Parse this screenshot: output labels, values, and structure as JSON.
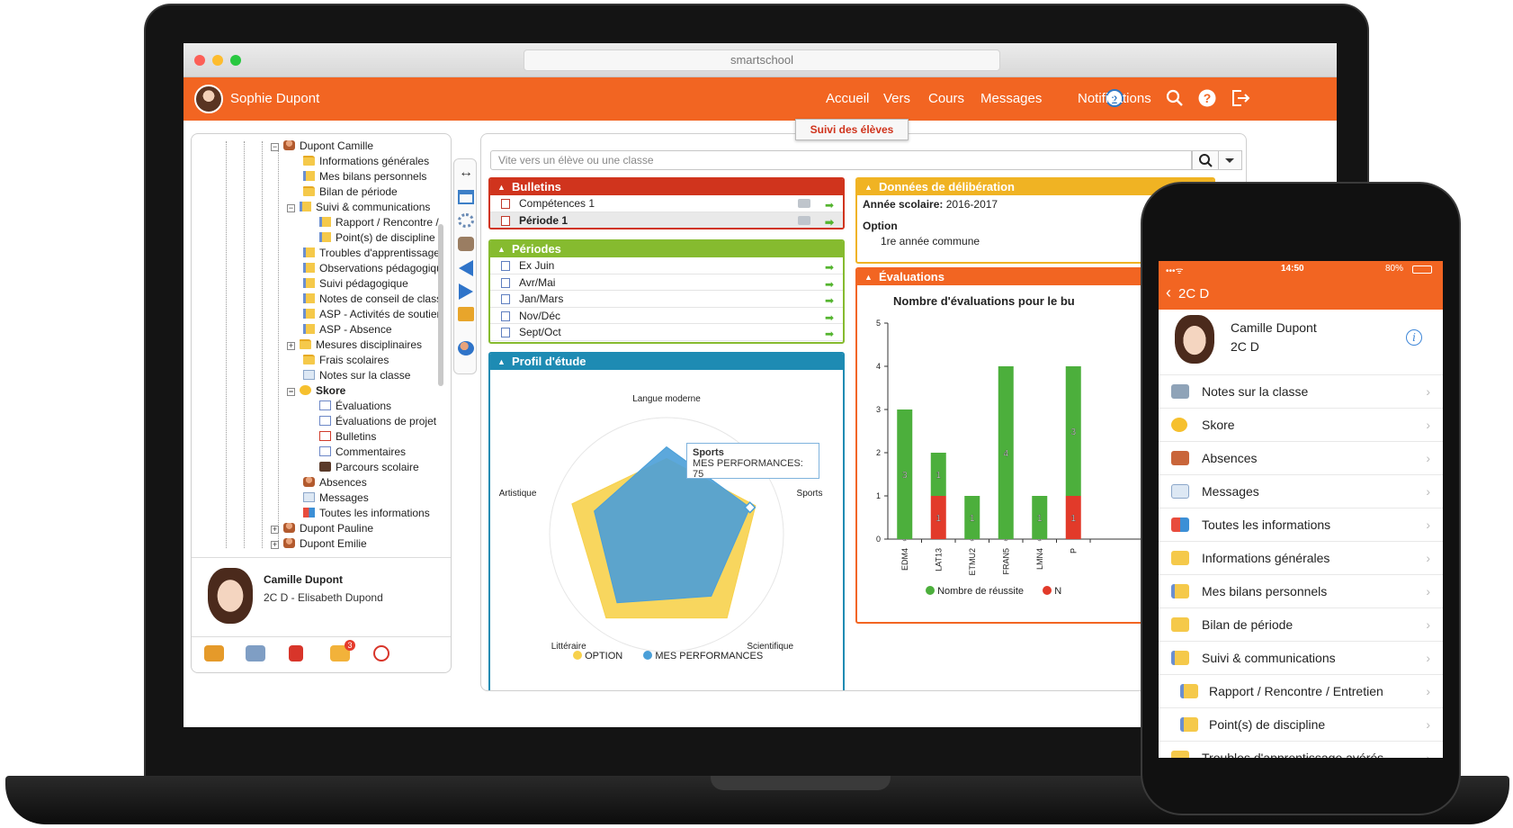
{
  "window": {
    "url": "smartschool"
  },
  "topnav": {
    "user": "Sophie Dupont",
    "links": [
      "Accueil",
      "Vers",
      "Cours",
      "Messages",
      "Notifications"
    ],
    "messages_count": "2",
    "colors": {
      "brand": "#f26522"
    }
  },
  "tree": {
    "root": "Dupont Camille",
    "items": [
      "Informations générales",
      "Mes bilans personnels",
      "Bilan de période",
      "Suivi & communications",
      "Rapport / Rencontre /",
      "Point(s) de discipline",
      "Troubles d'apprentissage",
      "Observations pédagogiqu",
      "Suivi pédagogique",
      "Notes de conseil de class",
      "ASP - Activités de soutien",
      "ASP - Absence",
      "Mesures disciplinaires",
      "Frais scolaires",
      "Notes sur la classe",
      "Skore",
      "Évaluations",
      "Évaluations de projet",
      "Bulletins",
      "Commentaires",
      "Parcours scolaire",
      "Absences",
      "Messages",
      "Toutes les informations"
    ],
    "siblings": [
      "Dupont Pauline",
      "Dupont Emilie"
    ]
  },
  "student_card": {
    "name": "Camille Dupont",
    "class": "2C D - Elisabeth Dupond",
    "notification_count": "3"
  },
  "main": {
    "tab_title": "Suivi des élèves",
    "search_placeholder": "Vite vers un élève ou une classe",
    "bulletins": {
      "title": "Bulletins",
      "rows": [
        "Compétences 1",
        "Période 1"
      ]
    },
    "periodes": {
      "title": "Périodes",
      "rows": [
        "Ex Juin",
        "Avr/Mai",
        "Jan/Mars",
        "Nov/Déc",
        "Sept/Oct"
      ]
    },
    "profil": {
      "title": "Profil d'étude",
      "tooltip_title": "Sports",
      "tooltip_text": "MES PERFORMANCES: 75",
      "legend": [
        "OPTION",
        "MES PERFORMANCES"
      ]
    },
    "deliberation": {
      "title": "Données de délibération",
      "year_label": "Année scolaire:",
      "year_value": "2016-2017",
      "option_label": "Option",
      "option_value": "1re année commune"
    },
    "evaluations": {
      "title": "Évaluations",
      "chart_title": "Nombre d'évaluations pour le bu",
      "legend": [
        "Nombre de réussite",
        "N"
      ]
    }
  },
  "chart_data": [
    {
      "type": "radar",
      "title": "Profil d'étude",
      "axes": [
        "Langue moderne",
        "Sports",
        "Scientifique",
        "Littéraire",
        "Artistique"
      ],
      "series": [
        {
          "name": "OPTION",
          "values": [
            65,
            80,
            88,
            88,
            85
          ],
          "color": "#f7d14c"
        },
        {
          "name": "MES PERFORMANCES",
          "values": [
            75,
            75,
            65,
            72,
            65
          ],
          "color": "#4a9fd8"
        }
      ]
    },
    {
      "type": "bar",
      "title": "Nombre d'évaluations pour le bu",
      "categories": [
        "EDM4",
        "LAT13",
        "ETMU2",
        "FRAN5",
        "LMN4",
        "P"
      ],
      "series": [
        {
          "name": "Nombre de réussite",
          "values": [
            3,
            1,
            1,
            4,
            1,
            3
          ],
          "color": "#4caf3c"
        },
        {
          "name": "N",
          "values": [
            0,
            1,
            0,
            0,
            0,
            1
          ],
          "color": "#e23a2a"
        }
      ],
      "ylim": [
        0,
        5
      ],
      "yticks": [
        0,
        1,
        2,
        3,
        4,
        5
      ]
    }
  ],
  "phone": {
    "time": "14:50",
    "battery": "80%",
    "back_label": "2C D",
    "student_name": "Camille Dupont",
    "student_class": "2C D",
    "items": [
      "Notes sur la classe",
      "Skore",
      "Absences",
      "Messages",
      "Toutes les informations",
      "Informations générales",
      "Mes bilans personnels",
      "Bilan de période",
      "Suivi & communications",
      "Rapport / Rencontre / Entretien",
      "Point(s) de discipline",
      "Troubles d'apprentissage avérés"
    ]
  }
}
